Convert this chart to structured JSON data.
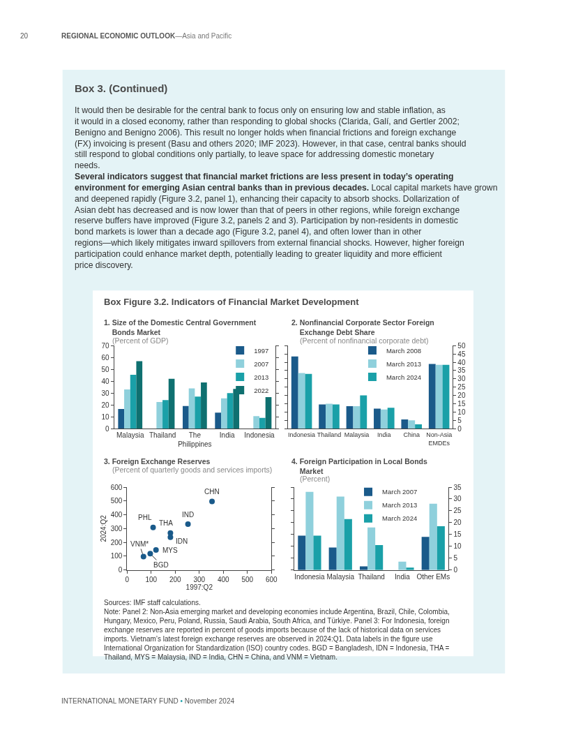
{
  "chart_data": [
    {
      "type": "other",
      "annotations": [
        "20",
        "REGIONAL ECONOMIC OUTLOOK",
        "—Asia and Pacific",
        "Box 3. (Continued)",
        "It would then be desirable for the central bank to focus only on ensuring low and stable inflation, as it would in a closed economy, rather than responding to global shocks (Clarida, Galí, and Gertler 2002; Benigno and Benigno 2006). This result no longer holds when financial frictions and foreign exchange (FX) invoicing is present (Basu and others 2020; IMF 2023). However, in that case, central banks should still respond to global conditions only partially, to leave space for addressing domestic monetary needs.",
        "Several indicators suggest that financial market frictions are less present in today’s operating environment for emerging Asian central banks than in previous decades.",
        "Local capital markets have grown and deepened rapidly (Figure 3.2, panel 1), enhancing their capacity to absorb shocks. Dollarization of Asian debt has decreased and is now lower than that of peers in other regions, while foreign exchange reserve buffers have improved (Figure 3.2, panels 2 and 3). Participation by non-residents in domestic bond markets is lower than a decade ago (Figure 3.2, panel 4), and often lower than in other regions—which likely mitigates inward spillovers from external financial shocks. However, higher foreign participation could enhance market depth, potentially leading to greater liquidity and more efficient price discovery.",
        "Box Figure 3.2. Indicators of Financial Market Development"
      ]
    },
    {
      "type": "bar",
      "title": "1. Size of the Domestic Central Government Bonds Market",
      "subtitle": "(Percent of GDP)",
      "categories": [
        "Malaysia",
        "Thailand",
        "The Philippines",
        "India",
        "Indonesia"
      ],
      "series": [
        {
          "name": "1997",
          "color": "#1a5a8a",
          "values": [
            16.5,
            null,
            19,
            13.5,
            null
          ]
        },
        {
          "name": "2007",
          "color": "#8fd0dc",
          "values": [
            33,
            22.5,
            34,
            25.5,
            10.5
          ]
        },
        {
          "name": "2013",
          "color": "#1aa0a8",
          "values": [
            45.5,
            24,
            27,
            30,
            9
          ]
        },
        {
          "name": "2022",
          "color": "#0f7070",
          "values": [
            57,
            42,
            39,
            33.5,
            26.5
          ]
        }
      ],
      "ylim": [
        0,
        70
      ],
      "yticks": [
        0,
        10,
        20,
        30,
        40,
        50,
        60,
        70
      ],
      "grid": false,
      "legend": "top right"
    },
    {
      "type": "bar",
      "title": "2. Nonfinancial Corporate Sector Foreign Exchange Debt Share",
      "subtitle": "(Percent of nonfinancial corporate debt)",
      "categories": [
        "Indonesia",
        "Thailand",
        "Malaysia",
        "India",
        "China",
        "Non-Asia EMDEs"
      ],
      "series": [
        {
          "name": "March 2008",
          "color": "#1a5a8a",
          "axis": "y2",
          "values": [
            43.5,
            14.5,
            13.5,
            12,
            5.5,
            39
          ]
        },
        {
          "name": "March 2013",
          "color": "#8fd0dc",
          "axis": "y2",
          "values": [
            33.5,
            15,
            13.5,
            11.5,
            5,
            38.5
          ]
        },
        {
          "name": "March 2024",
          "color": "#1aa0a8",
          "axis": "y2",
          "values": [
            33,
            14.5,
            20,
            12.5,
            2.5,
            38.5
          ]
        }
      ],
      "y2lim": [
        0,
        50
      ],
      "y2ticks": [
        0,
        5,
        10,
        15,
        20,
        25,
        30,
        35,
        40,
        45,
        50
      ],
      "grid": false,
      "legend": "top right"
    },
    {
      "type": "scatter",
      "title": "3. Foreign Exchange Reserves",
      "subtitle": "(Percent of quarterly goods and services imports)",
      "xlabel": "1997:Q2",
      "ylabel": "2024:Q2",
      "x": [
        353,
        253,
        108,
        180,
        180,
        120,
        96,
        68
      ],
      "series": [
        {
          "color": "#1a5a8a",
          "values": [
            497,
            332,
            308,
            268,
            238,
            145,
            118,
            97
          ]
        }
      ],
      "annotations": [
        {
          "text": "CHN",
          "x": 353,
          "y": 497
        },
        {
          "text": "IND",
          "x": 253,
          "y": 332
        },
        {
          "text": "PHL",
          "x": 108,
          "y": 308
        },
        {
          "text": "THA",
          "x": 180,
          "y": 268
        },
        {
          "text": "IDN",
          "x": 180,
          "y": 238
        },
        {
          "text": "MYS",
          "x": 120,
          "y": 145
        },
        {
          "text": "BGD",
          "x": 96,
          "y": 118
        },
        {
          "text": "VNM*",
          "x": 68,
          "y": 97
        }
      ],
      "xlim": [
        0,
        600
      ],
      "xticks": [
        0,
        100,
        200,
        300,
        400,
        500,
        600
      ],
      "ylim": [
        0,
        600
      ],
      "yticks": [
        0,
        100,
        200,
        300,
        400,
        500,
        600
      ],
      "grid": false,
      "marker": "circle"
    },
    {
      "type": "bar",
      "title": "4. Foreign Participation in Local Bonds Market",
      "subtitle": "(Percent)",
      "categories": [
        "Indonesia",
        "Malaysia",
        "Thailand",
        "India",
        "Other EMs"
      ],
      "series": [
        {
          "name": "March 2007",
          "color": "#1a5a8a",
          "axis": "y2",
          "values": [
            14.5,
            9.5,
            1.5,
            null,
            14
          ]
        },
        {
          "name": "March 2013",
          "color": "#8fd0dc",
          "axis": "y2",
          "values": [
            33,
            31,
            18,
            3.5,
            28
          ]
        },
        {
          "name": "March 2024",
          "color": "#1aa0a8",
          "axis": "y2",
          "values": [
            14.5,
            21.5,
            10.5,
            1,
            18.5
          ]
        }
      ],
      "y2lim": [
        0,
        35
      ],
      "y2ticks": [
        0,
        5,
        10,
        15,
        20,
        25,
        30,
        35
      ],
      "grid": false,
      "legend": "top right"
    },
    {
      "type": "other",
      "annotations": [
        "Sources: IMF staff calculations.",
        "Note: Panel 2: Non-Asia emerging market and developing economies include Argentina, Brazil, Chile, Colombia, Hungary, Mexico, Peru, Poland, Russia, Saudi Arabia, South Africa, and Türkiye. Panel 3: For Indonesia, foreign exchange reserves are reported in percent of goods imports because of the lack of historical data on services imports. Vietnam’s latest foreign exchange reserves are observed in 2024:Q1. Data labels in the figure use International Organization for Standardization (ISO) country codes. BGD = Bangladesh, IDN = Indonesia, THA = Thailand, MYS = Malaysia, IND = India, CHN = China, and VNM = Vietnam.",
        "INTERNATIONAL MONETARY FUND",
        "•",
        "November 2024"
      ]
    }
  ]
}
